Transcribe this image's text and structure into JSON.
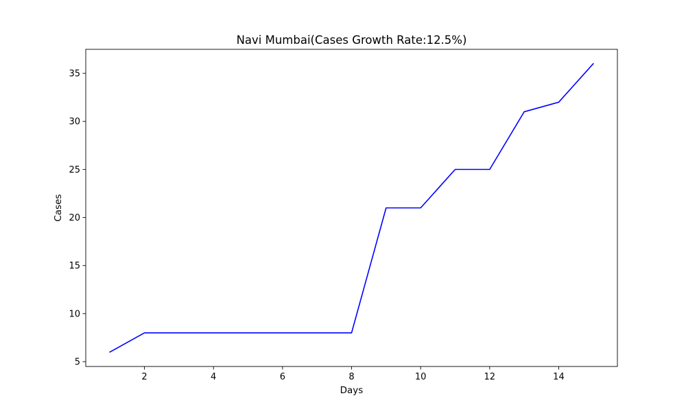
{
  "chart_data": {
    "type": "line",
    "title": "Navi Mumbai(Cases Growth Rate:12.5%)",
    "xlabel": "Days",
    "ylabel": "Cases",
    "xlim": [
      0.3,
      15.7
    ],
    "ylim": [
      4.5,
      37.5
    ],
    "xticks": [
      2,
      4,
      6,
      8,
      10,
      12,
      14
    ],
    "yticks": [
      5,
      10,
      15,
      20,
      25,
      30,
      35
    ],
    "grid": false,
    "series": [
      {
        "color": "#0000ff",
        "x": [
          1,
          2,
          3,
          4,
          5,
          6,
          7,
          8,
          9,
          10,
          11,
          12,
          13,
          14,
          15
        ],
        "y": [
          6,
          8,
          8,
          8,
          8,
          8,
          8,
          8,
          21,
          21,
          25,
          25,
          31,
          32,
          36
        ]
      }
    ]
  }
}
